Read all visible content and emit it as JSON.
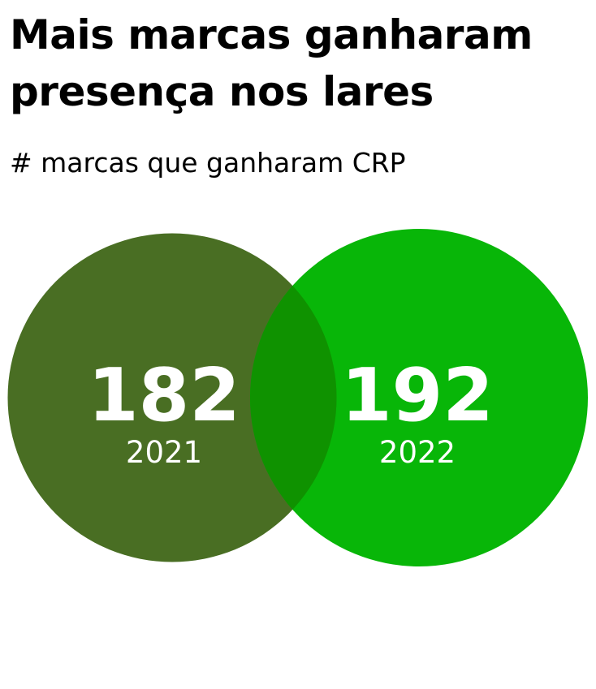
{
  "title_line1": "Mais marcas ganharam",
  "title_line2": "presença nos lares",
  "subtitle": "# marcas que ganharam CRP",
  "chart_data": {
    "type": "venn",
    "title": "Mais marcas ganharam presença nos lares",
    "subtitle": "# marcas que ganharam CRP",
    "series": [
      {
        "label": "2021",
        "value": 182,
        "color": "#43691c"
      },
      {
        "label": "2022",
        "value": 192,
        "color": "#00b400"
      }
    ]
  }
}
